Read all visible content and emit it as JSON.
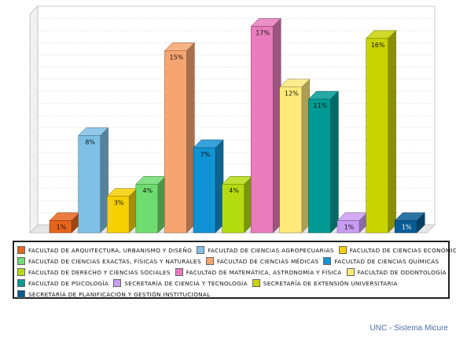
{
  "chart_data": {
    "type": "bar",
    "categories": [
      "Facultad de Arquitectura, Urbanismo y Diseño",
      "Facultad de Ciencias Agropecuarias",
      "Facultad de Ciencias Económicas",
      "Facultad de Ciencias Exactas, Físicas y Naturales",
      "Facultad de Ciencias Médicas",
      "Facultad de Ciencias Químicas",
      "Facultad de Derecho y Ciencias Sociales",
      "Facultad de Matemática, Astronomía y Física",
      "Facultad de Odontología",
      "Facultad de Psicología",
      "Secretaría de Ciencia y Tecnología",
      "Secretaría de Extensión Universitaria",
      "Secretaría de Planificación y Gestión Institucional"
    ],
    "values": [
      1,
      8,
      3,
      4,
      15,
      7,
      4,
      17,
      12,
      11,
      1,
      16,
      1
    ],
    "data_labels": [
      "1%",
      "8%",
      "3%",
      "4%",
      "15%",
      "7%",
      "4%",
      "17%",
      "12%",
      "11%",
      "1%",
      "16%",
      "1%"
    ],
    "colors": [
      "#e8641c",
      "#7ec0e6",
      "#f5d000",
      "#6fdc6f",
      "#f7a570",
      "#1192d4",
      "#b5dc10",
      "#e87cbc",
      "#ffe97a",
      "#009a94",
      "#c99cf3",
      "#c8d400",
      "#065c94"
    ],
    "ylim": [
      0,
      18
    ],
    "grid": true,
    "legend_position": "bottom"
  },
  "legend_rows": [
    [
      0,
      1,
      2
    ],
    [
      3,
      4,
      5
    ],
    [
      6,
      7,
      8
    ],
    [
      9,
      10,
      11
    ],
    [
      12
    ]
  ],
  "footer": "UNC - Sistema Micure"
}
